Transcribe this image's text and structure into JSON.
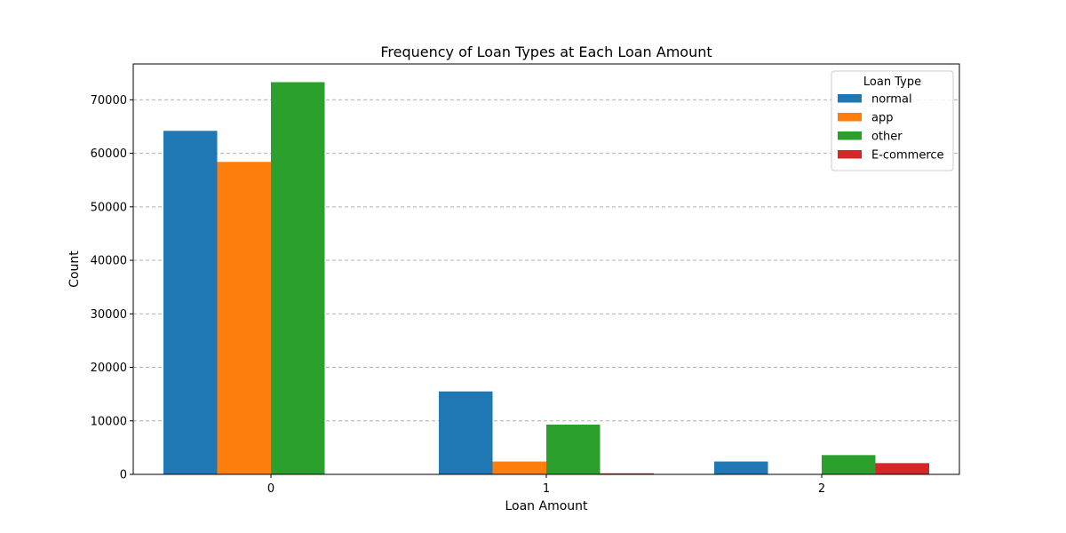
{
  "chart_data": {
    "type": "bar",
    "title": "Frequency of Loan Types at Each Loan Amount",
    "xlabel": "Loan Amount",
    "ylabel": "Count",
    "categories": [
      "0",
      "1",
      "2"
    ],
    "series": [
      {
        "name": "normal",
        "color": "#1f77b4",
        "values": [
          64200,
          15500,
          2400
        ]
      },
      {
        "name": "app",
        "color": "#ff7f0e",
        "values": [
          58400,
          2400,
          0
        ]
      },
      {
        "name": "other",
        "color": "#2ca02c",
        "values": [
          73300,
          9300,
          3600
        ]
      },
      {
        "name": "E-commerce",
        "color": "#d62728",
        "values": [
          0,
          200,
          2100
        ]
      }
    ],
    "ylim": [
      0,
      76700
    ],
    "yticks": [
      0,
      10000,
      20000,
      30000,
      40000,
      50000,
      60000,
      70000
    ],
    "grid": "y-dashed",
    "legend": {
      "title": "Loan Type",
      "placement": "top-right"
    }
  }
}
